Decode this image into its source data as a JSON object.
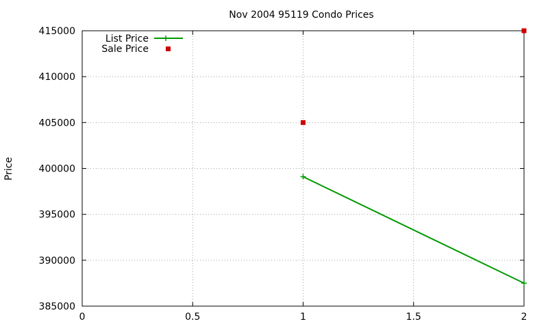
{
  "chart_data": {
    "type": "line",
    "title": "Nov 2004 95119 Condo Prices",
    "xlabel": "",
    "ylabel": "Price",
    "xlim": [
      0,
      2
    ],
    "ylim": [
      385000,
      415000
    ],
    "x_ticks": [
      "0",
      "0.5",
      "1",
      "1.5",
      "2"
    ],
    "y_ticks": [
      "385000",
      "390000",
      "395000",
      "400000",
      "405000",
      "410000",
      "415000"
    ],
    "grid": true,
    "legend_position": "top-left",
    "series": [
      {
        "name": "List Price",
        "style": "linespoints",
        "marker": "plus",
        "color": "#009900",
        "points": [
          {
            "x": 1,
            "y": 399100
          },
          {
            "x": 2,
            "y": 387500
          }
        ]
      },
      {
        "name": "Sale Price",
        "style": "points",
        "marker": "square",
        "color": "#cc0000",
        "points": [
          {
            "x": 1,
            "y": 405000
          },
          {
            "x": 2,
            "y": 415000
          }
        ]
      }
    ]
  }
}
